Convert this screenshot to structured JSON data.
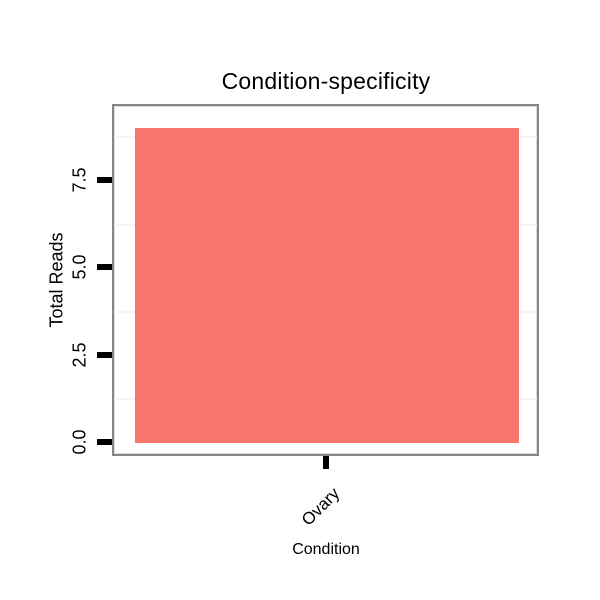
{
  "page": {
    "background_color": "#ffffff",
    "text_color": "#000000"
  },
  "chart_data": {
    "type": "bar",
    "title": "Condition-specificity",
    "xlabel": "Condition",
    "ylabel": "Total Reads",
    "categories": [
      "Ovary"
    ],
    "values": [
      9
    ],
    "ytick_labels": [
      "0.0",
      "2.5",
      "5.0",
      "7.5"
    ],
    "ytick_values": [
      0,
      2.5,
      5,
      7.5
    ],
    "minor_gridlines": [
      1.25,
      3.75,
      6.25,
      8.75
    ],
    "ylim": [
      -0.4,
      9.7
    ],
    "grid": "minor-only",
    "legend_position": "none",
    "category_label_angle_deg": 45,
    "bar_color": "#F8766D",
    "panel_background_color": "#ffffff",
    "panel_border_color": "#868686",
    "gridline_color": "#f4f4f4",
    "tick_color": "#000000"
  }
}
